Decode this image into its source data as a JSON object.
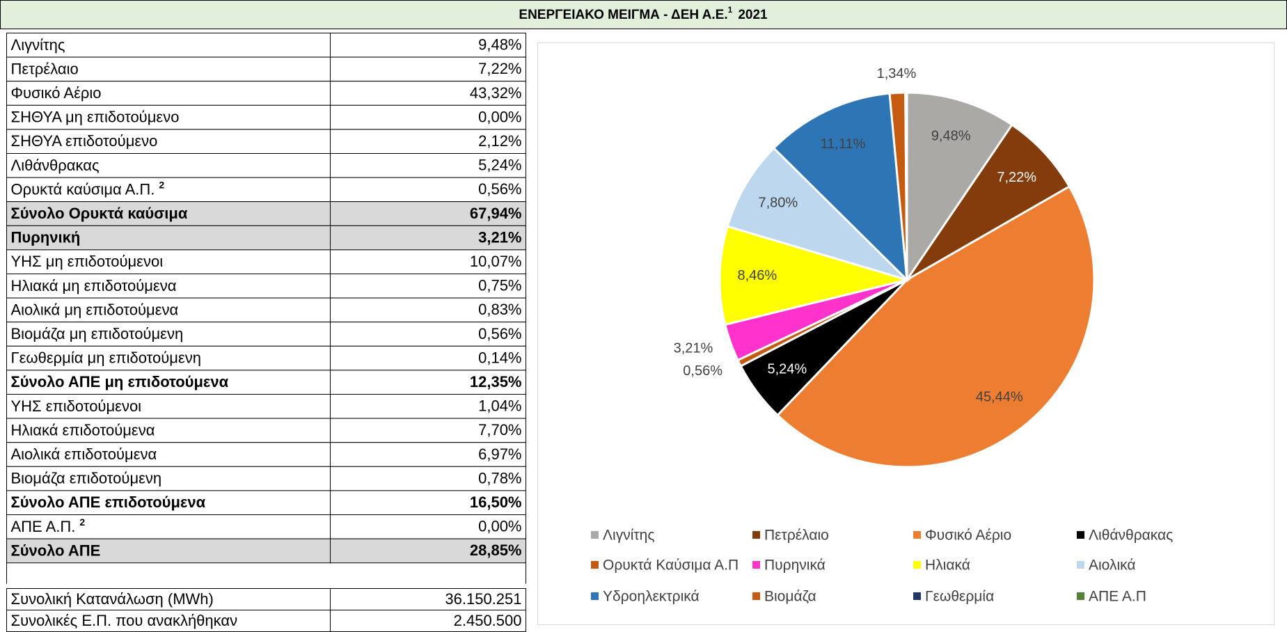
{
  "header": {
    "title": "ΕΝΕΡΓΕΙΑΚΟ ΜΕΙΓΜΑ - ΔΕΗ Α.Ε.",
    "note": "1",
    "year": "2021"
  },
  "table": {
    "rows": [
      {
        "label": "Λιγνίτης",
        "value": "9,48%"
      },
      {
        "label": "Πετρέλαιο",
        "value": "7,22%"
      },
      {
        "label": "Φυσικό Αέριο",
        "value": "43,32%"
      },
      {
        "label": "ΣΗΘΥΑ μη επιδοτούμενο",
        "value": "0,00%"
      },
      {
        "label": "ΣΗΘΥΑ επιδοτούμενο",
        "value": "2,12%"
      },
      {
        "label": "Λιθάνθρακας",
        "value": "5,24%"
      },
      {
        "label": "Ορυκτά καύσιμα Α.Π.",
        "note": "2",
        "value": "0,56%"
      },
      {
        "label": "Σύνολο Ορυκτά καύσιμα",
        "value": "67,94%",
        "bold": true,
        "shade": true
      },
      {
        "label": "Πυρηνική",
        "value": "3,21%",
        "bold": true,
        "shade": true
      },
      {
        "label": "ΥΗΣ μη επιδοτούμενοι",
        "value": "10,07%"
      },
      {
        "label": "Ηλιακά μη επιδοτούμενα",
        "value": "0,75%"
      },
      {
        "label": "Αιολικά μη επιδοτούμενα",
        "value": "0,83%"
      },
      {
        "label": "Βιομάζα μη επιδοτούμενη",
        "value": "0,56%"
      },
      {
        "label": "Γεωθερμία μη επιδοτούμενη",
        "value": "0,14%"
      },
      {
        "label": "Σύνολο ΑΠΕ μη επιδοτούμενα",
        "value": "12,35%",
        "bold": true
      },
      {
        "label": "ΥΗΣ επιδοτούμενοι",
        "value": "1,04%"
      },
      {
        "label": "Ηλιακά επιδοτούμενα",
        "value": "7,70%"
      },
      {
        "label": "Αιολικά επιδοτούμενα",
        "value": "6,97%"
      },
      {
        "label": "Βιομάζα επιδοτούμενη",
        "value": "0,78%"
      },
      {
        "label": "Σύνολο ΑΠΕ επιδοτούμενα",
        "value": "16,50%",
        "bold": true
      },
      {
        "label": "ΑΠΕ Α.Π.",
        "note": "2",
        "value": "0,00%"
      },
      {
        "label": "Σύνολο ΑΠΕ",
        "value": "28,85%",
        "bold": true,
        "shade": true
      }
    ]
  },
  "totals": {
    "rows": [
      {
        "label": "Συνολική Κατανάλωση (MWh)",
        "value": "36.150.251"
      },
      {
        "label": "Συνολικές Ε.Π. που ανακλήθηκαν",
        "value": "2.450.500"
      }
    ]
  },
  "chart_data": {
    "type": "pie",
    "categories": [
      "Λιγνίτης",
      "Πετρέλαιο",
      "Φυσικό Αέριο",
      "Λιθάνθρακας",
      "Ορυκτά Καύσιμα Α.Π",
      "Πυρηνικά",
      "Ηλιακά",
      "Αιολικά",
      "Υδροηλεκτρικά",
      "Βιομάζα",
      "Γεωθερμία",
      "ΑΠΕ Α.Π"
    ],
    "values": [
      9.48,
      7.22,
      45.44,
      5.24,
      0.56,
      3.21,
      8.46,
      7.8,
      11.11,
      1.34,
      0.14,
      0
    ],
    "value_labels": [
      "9,48%",
      "7,22%",
      "45,44%",
      "5,24%",
      "0,56%",
      "3,21%",
      "8,46%",
      "7,80%",
      "11,11%",
      "1,34%",
      null,
      null
    ],
    "colors": [
      "#aba9a6",
      "#843c0c",
      "#ed7d31",
      "#000000",
      "#c55a11",
      "#ff33cc",
      "#ffff00",
      "#bdd7ee",
      "#2e75b6",
      "#c55a11",
      "#203864",
      "#548235"
    ],
    "legend": "bottom"
  }
}
